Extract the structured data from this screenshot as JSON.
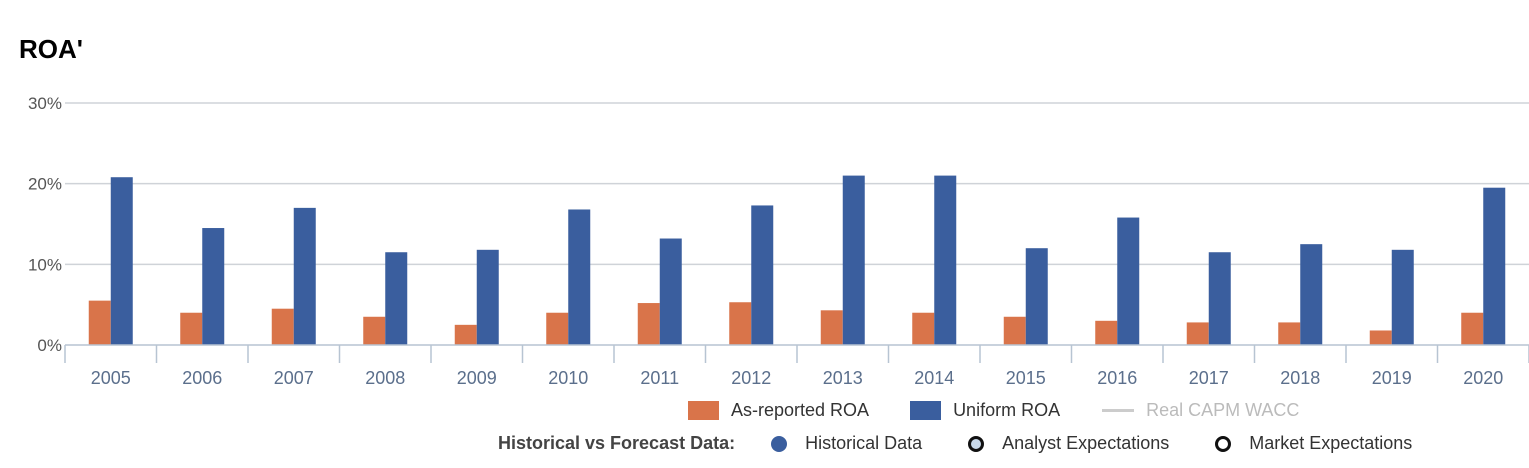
{
  "chart_data": {
    "type": "bar",
    "title": "ROA'",
    "categories": [
      "2005",
      "2006",
      "2007",
      "2008",
      "2009",
      "2010",
      "2011",
      "2012",
      "2013",
      "2014",
      "2015",
      "2016",
      "2017",
      "2018",
      "2019",
      "2020"
    ],
    "series": [
      {
        "name": "As-reported ROA",
        "color": "#d9744a",
        "values": [
          5.5,
          4.0,
          4.5,
          3.5,
          2.5,
          4.0,
          5.2,
          5.3,
          4.3,
          4.0,
          3.5,
          3.0,
          2.8,
          2.8,
          1.8,
          4.0
        ]
      },
      {
        "name": "Uniform ROA",
        "color": "#3a5e9e",
        "values": [
          20.8,
          14.5,
          17.0,
          11.5,
          11.8,
          16.8,
          13.2,
          17.3,
          21.0,
          21.0,
          12.0,
          15.8,
          11.5,
          12.5,
          11.8,
          19.5
        ]
      }
    ],
    "ylim": [
      0,
      30
    ],
    "yticks": [
      0,
      10,
      20,
      30
    ],
    "ytick_labels": [
      "0%",
      "10%",
      "20%",
      "30%"
    ],
    "grid": true,
    "legend_placement": "bottom-right"
  },
  "legend": {
    "as_reported": "As-reported ROA",
    "uniform": "Uniform ROA",
    "wacc": "Real CAPM WACC",
    "colors": {
      "as_reported": "#d9744a",
      "uniform": "#3a5e9e",
      "wacc": "#cccccc"
    }
  },
  "forecast_legend": {
    "label": "Historical vs Forecast Data:",
    "historical": "Historical Data",
    "analyst": "Analyst Expectations",
    "market": "Market Expectations"
  }
}
